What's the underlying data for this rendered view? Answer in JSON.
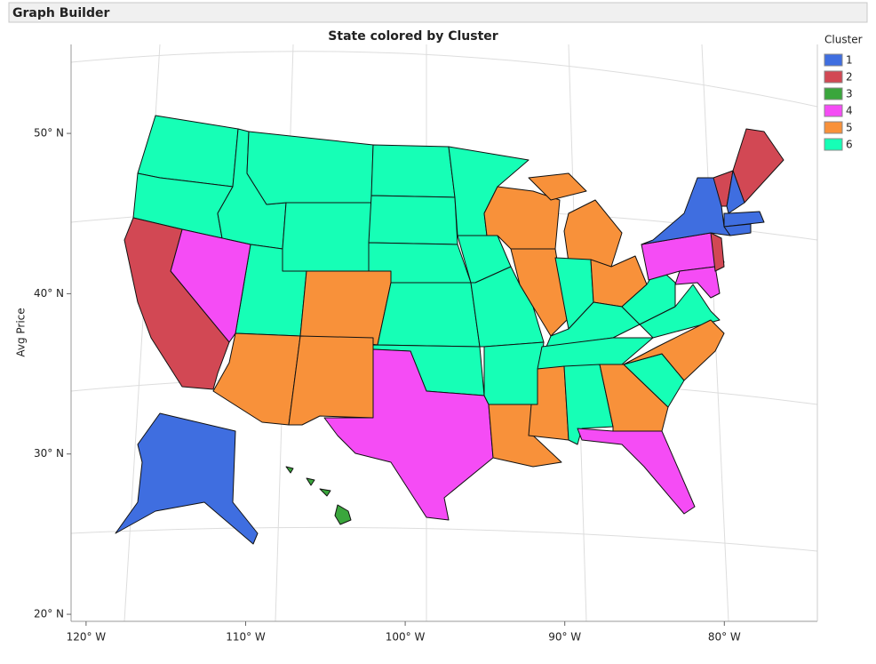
{
  "header": {
    "title": "Graph Builder"
  },
  "chart_data": {
    "type": "map",
    "title": "State colored by Cluster",
    "y_label": "Avg Price",
    "xlim": [
      -120.94,
      -74.17
    ],
    "ylim": [
      19.56,
      55.55
    ],
    "xticks": [
      {
        "value": -120,
        "label": "120° W"
      },
      {
        "value": -110,
        "label": "110° W"
      },
      {
        "value": -100,
        "label": "100° W"
      },
      {
        "value": -90,
        "label": "90° W"
      },
      {
        "value": -80,
        "label": "80° W"
      }
    ],
    "yticks": [
      {
        "value": 20,
        "label": "20° N"
      },
      {
        "value": 30,
        "label": "30° N"
      },
      {
        "value": 40,
        "label": "40° N"
      },
      {
        "value": 50,
        "label": "50° N"
      }
    ],
    "legend": {
      "title": "Cluster",
      "items": [
        {
          "name": "1",
          "color": "#3f6ee0"
        },
        {
          "name": "2",
          "color": "#d24854"
        },
        {
          "name": "3",
          "color": "#3aa63c"
        },
        {
          "name": "4",
          "color": "#f54cf5"
        },
        {
          "name": "5",
          "color": "#f8913a"
        },
        {
          "name": "6",
          "color": "#16ffb6"
        }
      ]
    }
  }
}
